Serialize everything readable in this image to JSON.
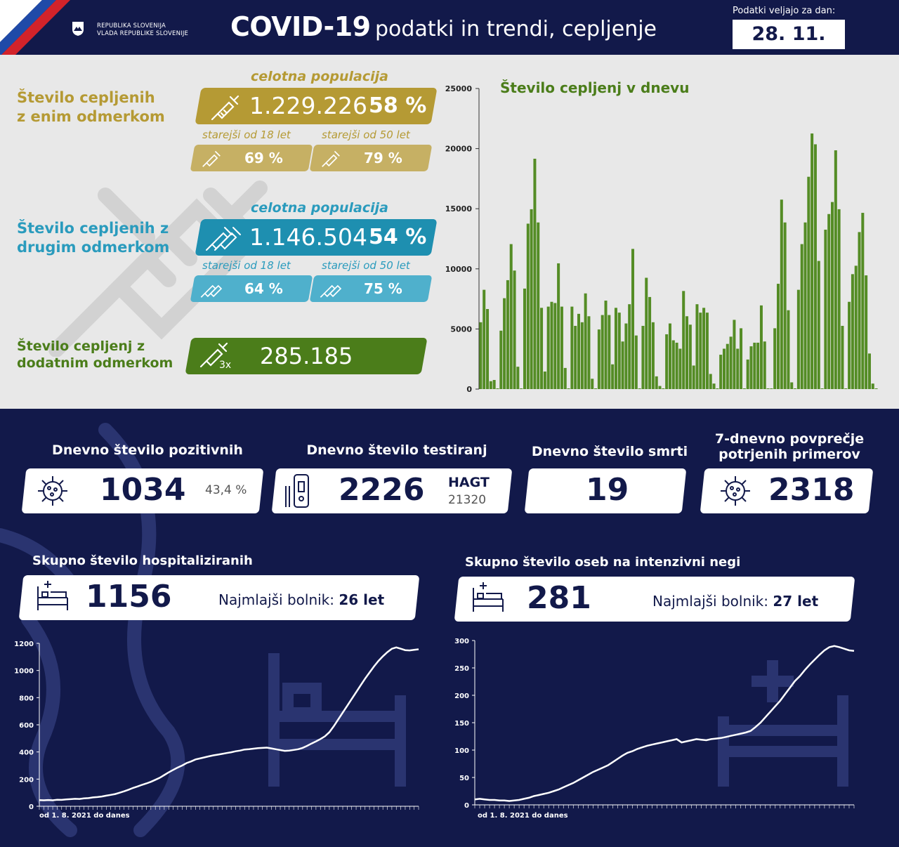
{
  "header": {
    "gov_line1": "REPUBLIKA SLOVENIJA",
    "gov_line2": "VLADA REPUBLIKE SLOVENIJE",
    "title_main": "COVID-19",
    "title_sub": "podatki in trendi, cepljenje",
    "date_label": "Podatki veljajo za dan:",
    "date": "28. 11. 2021"
  },
  "vaccination": {
    "first": {
      "label_l1": "Število cepljenih",
      "label_l2": "z enim odmerkom",
      "pop_label": "celotna populacija",
      "count": "1.229.226",
      "pct": "58 %",
      "age18_label": "starejši od 18 let",
      "age18": "69 %",
      "age50_label": "starejši od 50 let",
      "age50": "79 %"
    },
    "second": {
      "label_l1": "Število cepljenih z",
      "label_l2": "drugim odmerkom",
      "pop_label": "celotna populacija",
      "count": "1.146.504",
      "pct": "54 %",
      "age18_label": "starejši od 18 let",
      "age18": "64 %",
      "age50_label": "starejši od 50 let",
      "age50": "75 %"
    },
    "booster": {
      "label_l1": "Število cepljenj z",
      "label_l2": "dodatnim odmerkom",
      "dose_tag": "3x",
      "count": "285.185"
    },
    "colors": {
      "gold": "#b59a34",
      "gold_light": "#c6b064",
      "teal": "#1e8fb0",
      "teal_light": "#4fb0cc",
      "green": "#4b7d1a",
      "bar_green": "#548c25"
    }
  },
  "stats": {
    "positive": {
      "title": "Dnevno število pozitivnih",
      "value": "1034",
      "pct": "43,4 %"
    },
    "tests": {
      "title": "Dnevno število testiranj",
      "value": "2226",
      "hagt_label": "HAGT",
      "hagt_value": "21320"
    },
    "deaths": {
      "title": "Dnevno število smrti",
      "value": "19"
    },
    "avg7": {
      "title_l1": "7-dnevno povprečje",
      "title_l2": "potrjenih primerov",
      "value": "2318"
    },
    "hospital": {
      "title": "Skupno število hospitaliziranih",
      "value": "1156",
      "youngest_label": "Najmlajši bolnik:",
      "youngest": "26 let"
    },
    "icu": {
      "title": "Skupno število oseb na intenzivni negi",
      "value": "281",
      "youngest_label": "Najmlajši bolnik:",
      "youngest": "27 let"
    }
  },
  "chart_data": [
    {
      "type": "bar",
      "title": "Število cepljenj v dnevu",
      "ylim": [
        0,
        25000
      ],
      "yticks": [
        0,
        5000,
        10000,
        15000,
        20000,
        25000
      ],
      "grid": false,
      "values": [
        5500,
        8200,
        6600,
        600,
        700,
        0,
        4800,
        7500,
        9000,
        12000,
        9800,
        1800,
        0,
        8300,
        13700,
        14900,
        19100,
        13800,
        6700,
        1400,
        6800,
        7200,
        7100,
        10400,
        6800,
        1700,
        0,
        6800,
        5200,
        6200,
        5500,
        7900,
        6000,
        800,
        0,
        4900,
        6100,
        7300,
        6100,
        2000,
        6700,
        6300,
        3900,
        5400,
        7000,
        11600,
        4400,
        0,
        5200,
        9200,
        7600,
        5500,
        1000,
        200,
        0,
        4500,
        5400,
        4000,
        3800,
        3300,
        8100,
        6000,
        5300,
        1900,
        7000,
        6300,
        6700,
        6300,
        1200,
        400,
        0,
        2800,
        3300,
        3700,
        4300,
        5700,
        3300,
        5000,
        0,
        2400,
        3500,
        3800,
        3800,
        6900,
        3900,
        0,
        0,
        5000,
        8700,
        15700,
        13800,
        6500,
        500,
        0,
        8200,
        12000,
        13800,
        17600,
        21200,
        20300,
        10600,
        0,
        13200,
        14500,
        15500,
        19800,
        14900,
        5200,
        0,
        7200,
        9500,
        10200,
        13000,
        14600,
        9400,
        2900,
        400,
        0
      ]
    },
    {
      "type": "line",
      "title": "Skupno število hospitaliziranih",
      "xlabel": "od 1. 8. 2021 do danes",
      "ylim": [
        0,
        1200
      ],
      "yticks": [
        0,
        200,
        400,
        600,
        800,
        1000,
        1200
      ],
      "series": [
        {
          "values": [
            45,
            44,
            46,
            44,
            48,
            47,
            50,
            52,
            55,
            54,
            58,
            60,
            65,
            68,
            72,
            78,
            84,
            90,
            100,
            110,
            122,
            135,
            146,
            158,
            168,
            180,
            195,
            210,
            230,
            250,
            268,
            285,
            300,
            318,
            330,
            345,
            352,
            360,
            368,
            375,
            380,
            386,
            392,
            398,
            405,
            410,
            418,
            420,
            424,
            428,
            430,
            432,
            426,
            420,
            414,
            408,
            410,
            415,
            420,
            430,
            445,
            462,
            478,
            495,
            515,
            545,
            590,
            640,
            690,
            740,
            790,
            840,
            890,
            940,
            985,
            1030,
            1070,
            1105,
            1135,
            1160,
            1170,
            1160,
            1150,
            1148,
            1152,
            1156
          ]
        }
      ]
    },
    {
      "type": "line",
      "title": "Skupno število oseb na intenzivni negi",
      "xlabel": "od 1. 8. 2021 do danes",
      "ylim": [
        0,
        300
      ],
      "yticks": [
        0,
        50,
        100,
        150,
        200,
        250,
        300
      ],
      "series": [
        {
          "values": [
            10,
            11,
            10,
            9,
            9,
            8,
            8,
            7,
            8,
            9,
            11,
            13,
            16,
            18,
            20,
            22,
            25,
            28,
            32,
            36,
            40,
            45,
            50,
            55,
            60,
            64,
            68,
            72,
            78,
            84,
            90,
            95,
            98,
            102,
            105,
            108,
            110,
            112,
            114,
            116,
            118,
            120,
            114,
            116,
            118,
            120,
            119,
            118,
            120,
            121,
            122,
            124,
            126,
            128,
            130,
            132,
            135,
            142,
            150,
            160,
            170,
            180,
            190,
            202,
            214,
            226,
            235,
            246,
            256,
            265,
            274,
            282,
            288,
            290,
            288,
            285,
            282,
            281
          ]
        }
      ]
    }
  ]
}
